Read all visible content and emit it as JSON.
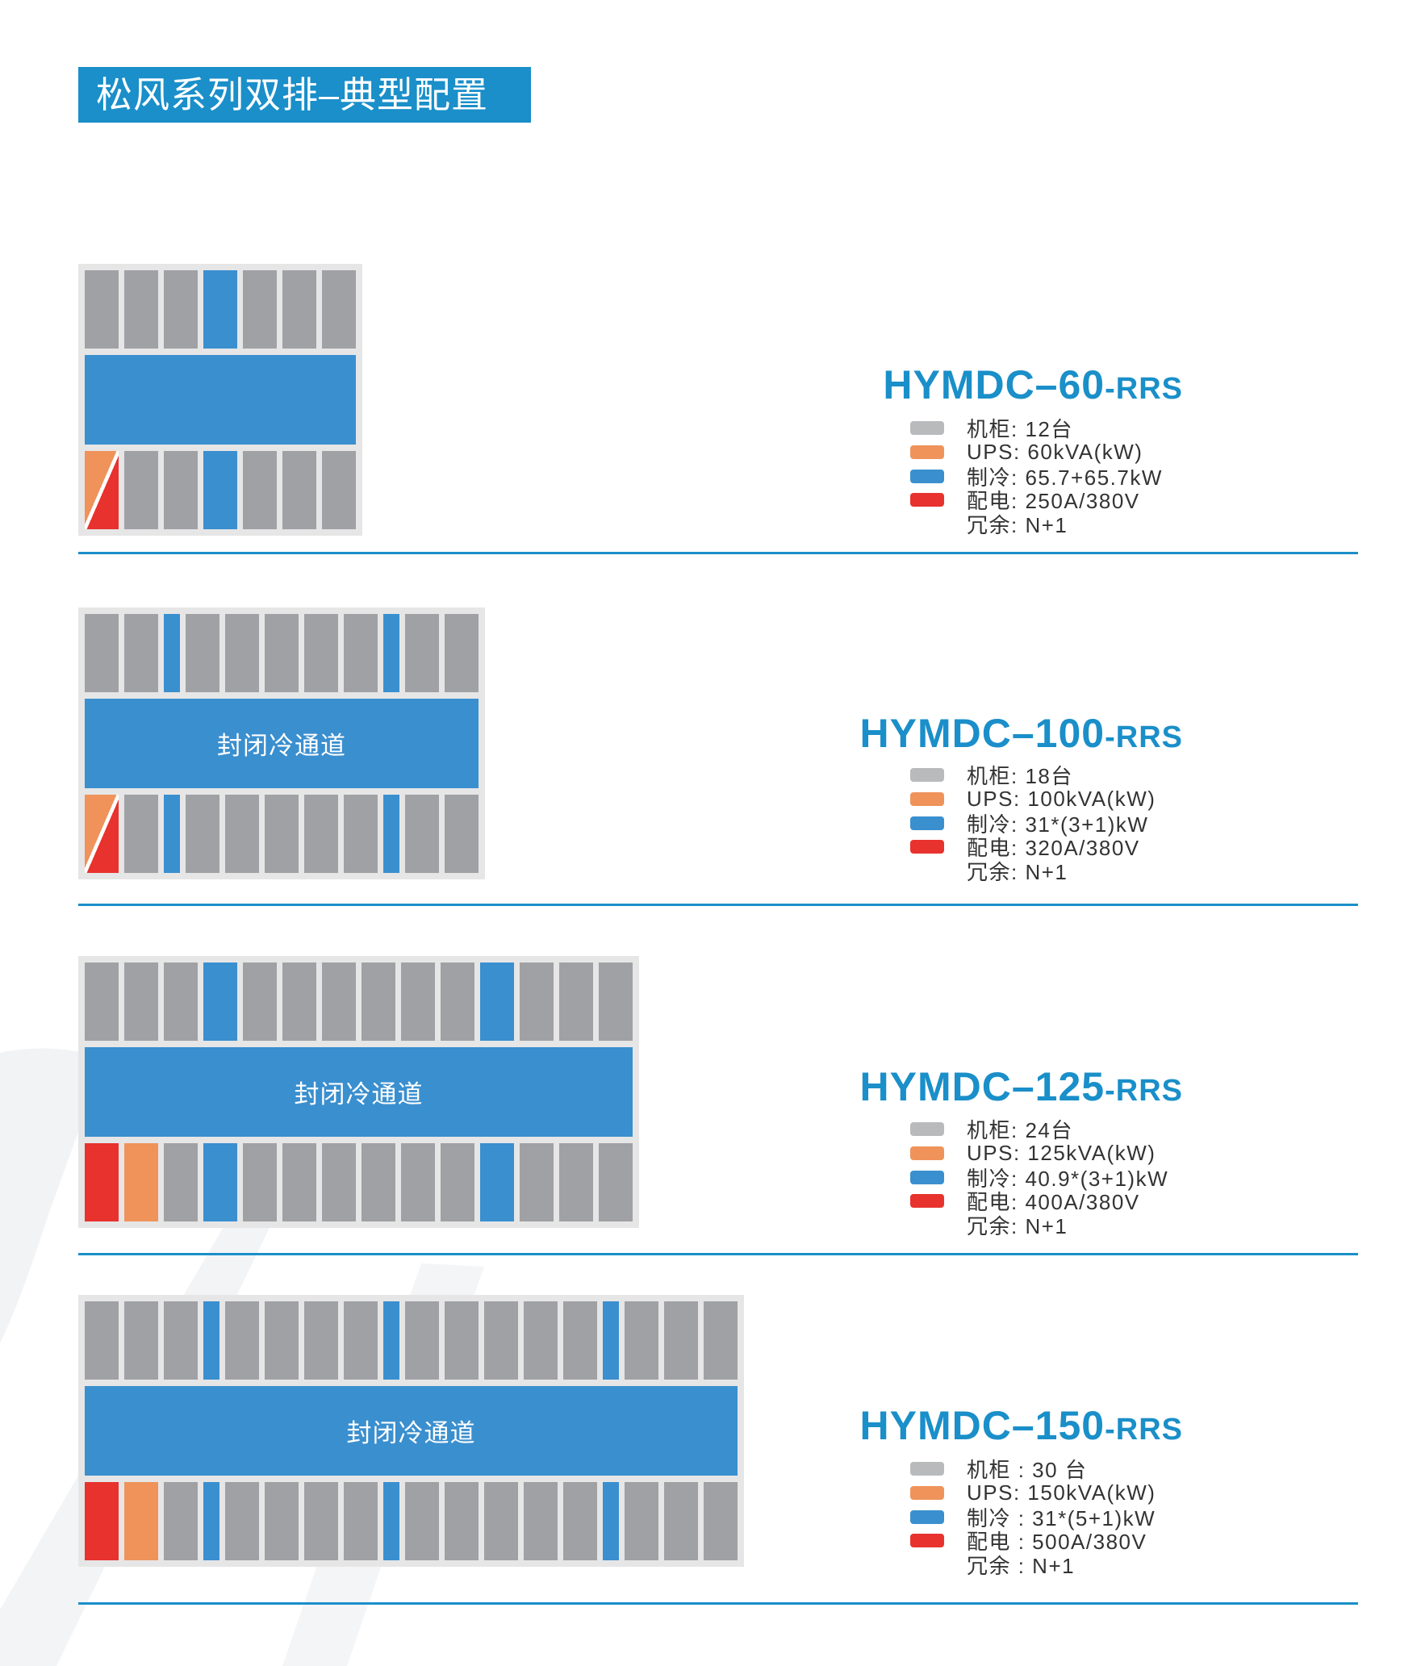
{
  "title": "松风系列双排–典型配置",
  "colors": {
    "accent": "#1a8fc9",
    "rack": "#a0a1a5",
    "cooling": "#3a8fcf",
    "ups": "#ef935b",
    "power": "#e8322e",
    "frame": "#e6e6e7",
    "legend_rack": "#b9babc"
  },
  "configs": [
    {
      "model": "HYMDC–60",
      "suffix": "-RRS",
      "aisle_label": "",
      "top_row": [
        "rack",
        "rack",
        "rack",
        "cooling",
        "rack",
        "rack",
        "rack"
      ],
      "bottom_row": [
        "ups-power",
        "rack",
        "rack",
        "cooling",
        "rack",
        "rack",
        "rack"
      ],
      "specs": [
        {
          "swatch": "rack",
          "text": "机柜: 12台"
        },
        {
          "swatch": "ups",
          "text": "UPS: 60kVA(kW)"
        },
        {
          "swatch": "cooling",
          "text": "制冷: 65.7+65.7kW"
        },
        {
          "swatch": "power",
          "text": "配电: 250A/380V"
        },
        {
          "swatch": null,
          "text": "冗余: N+1"
        }
      ]
    },
    {
      "model": "HYMDC–100",
      "suffix": "-RRS",
      "aisle_label": "封闭冷通道",
      "top_row": [
        "rack",
        "rack",
        "cooling-narrow",
        "rack",
        "rack",
        "rack",
        "rack",
        "rack",
        "cooling-narrow",
        "rack",
        "rack"
      ],
      "bottom_row": [
        "ups-power",
        "rack",
        "cooling-narrow",
        "rack",
        "rack",
        "rack",
        "rack",
        "rack",
        "cooling-narrow",
        "rack",
        "rack"
      ],
      "specs": [
        {
          "swatch": "rack",
          "text": "机柜: 18台"
        },
        {
          "swatch": "ups",
          "text": "UPS: 100kVA(kW)"
        },
        {
          "swatch": "cooling",
          "text": "制冷: 31*(3+1)kW"
        },
        {
          "swatch": "power",
          "text": "配电: 320A/380V"
        },
        {
          "swatch": null,
          "text": "冗余: N+1"
        }
      ]
    },
    {
      "model": "HYMDC–125",
      "suffix": "-RRS",
      "aisle_label": "封闭冷通道",
      "top_row": [
        "rack",
        "rack",
        "rack",
        "cooling",
        "rack",
        "rack",
        "rack",
        "rack",
        "rack",
        "rack",
        "cooling",
        "rack",
        "rack",
        "rack"
      ],
      "bottom_row": [
        "power",
        "ups",
        "rack",
        "cooling",
        "rack",
        "rack",
        "rack",
        "rack",
        "rack",
        "rack",
        "cooling",
        "rack",
        "rack",
        "rack"
      ],
      "specs": [
        {
          "swatch": "rack",
          "text": "机柜: 24台"
        },
        {
          "swatch": "ups",
          "text": "UPS: 125kVA(kW)"
        },
        {
          "swatch": "cooling",
          "text": "制冷: 40.9*(3+1)kW"
        },
        {
          "swatch": "power",
          "text": "配电: 400A/380V"
        },
        {
          "swatch": null,
          "text": "冗余: N+1"
        }
      ]
    },
    {
      "model": "HYMDC–150",
      "suffix": "-RRS",
      "aisle_label": "封闭冷通道",
      "top_row": [
        "rack",
        "rack",
        "rack",
        "cooling-narrow",
        "rack",
        "rack",
        "rack",
        "rack",
        "cooling-narrow",
        "rack",
        "rack",
        "rack",
        "rack",
        "rack",
        "cooling-narrow",
        "rack",
        "rack",
        "rack"
      ],
      "bottom_row": [
        "power",
        "ups",
        "rack",
        "cooling-narrow",
        "rack",
        "rack",
        "rack",
        "rack",
        "cooling-narrow",
        "rack",
        "rack",
        "rack",
        "rack",
        "rack",
        "cooling-narrow",
        "rack",
        "rack",
        "rack"
      ],
      "specs": [
        {
          "swatch": "rack",
          "text": "机柜 : 30 台"
        },
        {
          "swatch": "ups",
          "text": "UPS: 150kVA(kW)"
        },
        {
          "swatch": "cooling",
          "text": "制冷 : 31*(5+1)kW"
        },
        {
          "swatch": "power",
          "text": "配电 : 500A/380V"
        },
        {
          "swatch": null,
          "text": "冗余 : N+1"
        }
      ]
    }
  ]
}
